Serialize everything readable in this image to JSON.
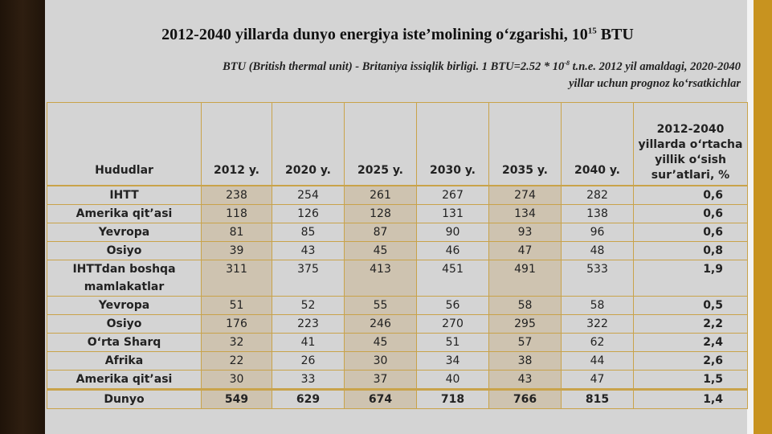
{
  "title": {
    "text": "2012-2040 yillarda dunyo energiya iste’molining o‘zgarishi, 10",
    "sup": "15",
    "unit": "BTU"
  },
  "subtitle": {
    "before": "BTU (British thermal unit) - Britaniya issiqlik birligi. 1 BTU=2.52 * 10",
    "sup": "-8",
    "after": " t.n.e. 2012 yil amaldagi, 2020-2040 yillar uchun prognoz ko‘rsatkichlar"
  },
  "table": {
    "header": [
      "Hududlar",
      "2012 y.",
      "2020 y.",
      "2025 y.",
      "2030 y.",
      "2035 y.",
      "2040 y.",
      "2012-2040 yillarda o‘rtacha yillik o‘sish sur’atlari, %"
    ],
    "rows": [
      [
        "IHTT",
        "238",
        "254",
        "261",
        "267",
        "274",
        "282",
        "0,6"
      ],
      [
        "Amerika qit’asi",
        "118",
        "126",
        "128",
        "131",
        "134",
        "138",
        "0,6"
      ],
      [
        "Yevropa",
        "81",
        "85",
        "87",
        "90",
        "93",
        "96",
        "0,6"
      ],
      [
        "Osiyo",
        "39",
        "43",
        "45",
        "46",
        "47",
        "48",
        "0,8"
      ],
      [
        "IHTTdan boshqa mamlakatlar",
        "311",
        "375",
        "413",
        "451",
        "491",
        "533",
        "1,9"
      ],
      [
        "Yevropa",
        "51",
        "52",
        "55",
        "56",
        "58",
        "58",
        "0,5"
      ],
      [
        "Osiyo",
        "176",
        "223",
        "246",
        "270",
        "295",
        "322",
        "2,2"
      ],
      [
        "O‘rta Sharq",
        "32",
        "41",
        "45",
        "51",
        "57",
        "62",
        "2,4"
      ],
      [
        "Afrika",
        "22",
        "26",
        "30",
        "34",
        "38",
        "44",
        "2,6"
      ],
      [
        "Amerika qit’asi",
        "30",
        "33",
        "37",
        "40",
        "43",
        "47",
        "1,5"
      ],
      [
        "Dunyo",
        "549",
        "629",
        "674",
        "718",
        "766",
        "815",
        "1,4"
      ]
    ]
  }
}
